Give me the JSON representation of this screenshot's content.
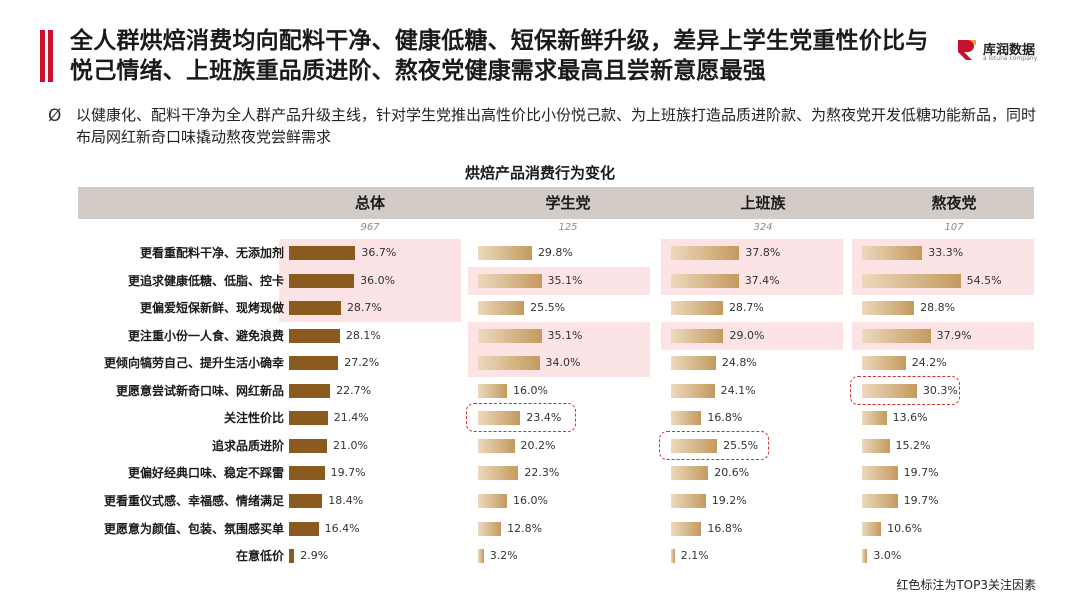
{
  "header": {
    "title": "全人群烘焙消费均向配料干净、健康低糖、短保新鲜升级，差异上学生党重性价比与悦己情绪、上班族重品质进阶、熬夜党健康需求最高且尝新意愿最强",
    "logo_text": "库润数据",
    "logo_sub": "a lotuna company"
  },
  "summary": {
    "bullet": "Ø",
    "text": "以健康化、配料干净为全人群产品升级主线，针对学生党推出高性价比小份悦己款、为上班族打造品质进阶款、为熬夜党开发低糖功能新品，同时布局网红新奇口味撬动熬夜党尝鲜需求"
  },
  "colors": {
    "header_band": "#d3ccc6",
    "total_bar": "#8a5a1e",
    "group_bar_light": "#ecd9bd",
    "group_bar_dark": "#c49a5e",
    "highlight_pink": "#fbe3e6",
    "dash_red": "#d0302d"
  },
  "footnote": "红色标注为TOP3关注因素",
  "chart_data": {
    "type": "bar",
    "title": "烘焙产品消费行为变化",
    "categories": [
      "更看重配料干净、无添加剂",
      "更追求健康低糖、低脂、控卡",
      "更偏爱短保新鲜、现烤现做",
      "更注重小份一人食、避免浪费",
      "更倾向犒劳自己、提升生活小确幸",
      "更愿意尝试新奇口味、网红新品",
      "关注性价比",
      "追求品质进阶",
      "更偏好经典口味、稳定不踩雷",
      "更看重仪式感、幸福感、情绪满足",
      "更愿意为颜值、包装、氛围感买单",
      "在意低价"
    ],
    "series": [
      {
        "name": "总体",
        "n": "967",
        "values": [
          36.7,
          36.0,
          28.7,
          28.1,
          27.2,
          22.7,
          21.4,
          21.0,
          19.7,
          18.4,
          16.4,
          2.9
        ],
        "top3": [
          0,
          1,
          2
        ],
        "circled": []
      },
      {
        "name": "学生党",
        "n": "125",
        "values": [
          29.8,
          35.1,
          25.5,
          35.1,
          34.0,
          16.0,
          23.4,
          20.2,
          22.3,
          16.0,
          12.8,
          3.2
        ],
        "top3": [
          1,
          3,
          4
        ],
        "circled": [
          6
        ]
      },
      {
        "name": "上班族",
        "n": "324",
        "values": [
          37.8,
          37.4,
          28.7,
          29.0,
          24.8,
          24.1,
          16.8,
          25.5,
          20.6,
          19.2,
          16.8,
          2.1
        ],
        "top3": [
          0,
          1,
          3
        ],
        "circled": [
          7
        ]
      },
      {
        "name": "熬夜党",
        "n": "107",
        "values": [
          33.3,
          54.5,
          28.8,
          37.9,
          24.2,
          30.3,
          13.6,
          15.2,
          19.7,
          19.7,
          10.6,
          3.0
        ],
        "top3": [
          0,
          1,
          3
        ],
        "circled": [
          5
        ]
      }
    ],
    "value_suffix": "%"
  }
}
